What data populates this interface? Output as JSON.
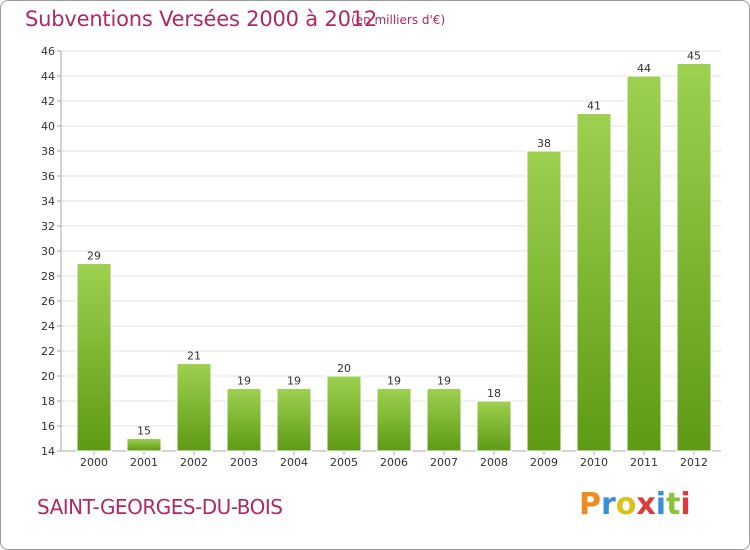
{
  "header": {
    "title": "Subventions Versées 2000 à 2012",
    "unit_note": "(en milliers d'€)"
  },
  "footer": {
    "commune": "SAINT-GEORGES-DU-BOIS",
    "logo_text": "Proxiti",
    "logo_colors": [
      "#f08a1c",
      "#3a8fd8",
      "#d8c21a",
      "#e03a3a",
      "#3a8fd8",
      "#8ac43a",
      "#e03a3a"
    ]
  },
  "colors": {
    "title": "#b02864",
    "bar_top": "#9dd14f",
    "bar_bottom": "#5e9a14",
    "grid": "#e3e3e3",
    "axis": "#aaaaaa"
  },
  "chart_data": {
    "type": "bar",
    "title": "Subventions Versées 2000 à 2012",
    "subtitle": "(en milliers d'€)",
    "xlabel": "",
    "ylabel": "",
    "categories": [
      "2000",
      "2001",
      "2002",
      "2003",
      "2004",
      "2005",
      "2006",
      "2007",
      "2008",
      "2009",
      "2010",
      "2011",
      "2012"
    ],
    "values": [
      29,
      15,
      21,
      19,
      19,
      20,
      19,
      19,
      18,
      38,
      41,
      44,
      45
    ],
    "ylim": [
      14,
      46
    ],
    "yticks": [
      14,
      16,
      18,
      20,
      22,
      24,
      26,
      28,
      30,
      32,
      34,
      36,
      38,
      40,
      42,
      44,
      46
    ],
    "grid": true,
    "legend": "none"
  }
}
